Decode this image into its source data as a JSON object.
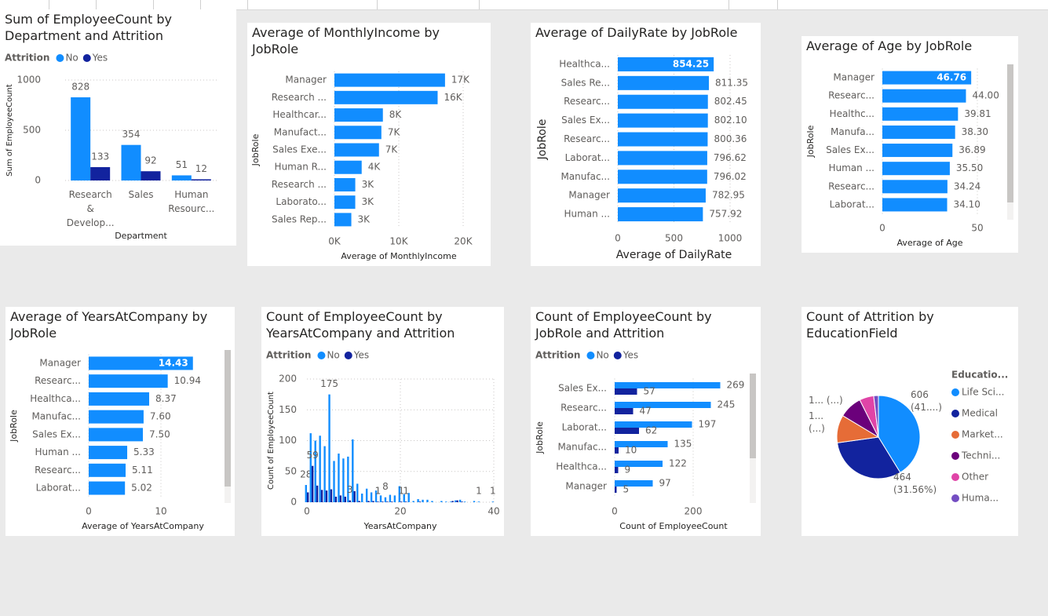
{
  "chart_data": [
    {
      "type": "bar",
      "title": "Sum of EmployeeCount by Department and Attrition",
      "legend_title": "Attrition",
      "x_label": "Department",
      "y_label": "Sum of EmployeeCount",
      "categories": [
        "Research & Develop...",
        "Sales",
        "Human Resourc..."
      ],
      "series": [
        {
          "name": "No",
          "color": "#118dff",
          "values": [
            828,
            354,
            51
          ]
        },
        {
          "name": "Yes",
          "color": "#12239e",
          "values": [
            133,
            92,
            12
          ]
        }
      ],
      "ylim": [
        0,
        1000
      ],
      "yticks": [
        0,
        500,
        1000
      ],
      "grid": true,
      "data_labels": true
    },
    {
      "type": "bar",
      "orientation": "horizontal",
      "title": "Average of MonthlyIncome by JobRole",
      "x_label": "Average of MonthlyIncome",
      "y_label": "JobRole",
      "categories": [
        "Manager",
        "Research ...",
        "Healthcar...",
        "Manufact...",
        "Sales Exe...",
        "Human R...",
        "Research ...",
        "Laborato...",
        "Sales Rep..."
      ],
      "values": [
        17182,
        16034,
        7529,
        7295,
        6924,
        4236,
        3240,
        3237,
        2626
      ],
      "value_labels": [
        "17K",
        "16K",
        "8K",
        "7K",
        "7K",
        "4K",
        "3K",
        "3K",
        "3K"
      ],
      "color": "#118dff",
      "xlim": [
        0,
        20000
      ],
      "xticks": [
        {
          "value": 0,
          "label": "0K"
        },
        {
          "value": 10000,
          "label": "10K"
        },
        {
          "value": 20000,
          "label": "20K"
        }
      ],
      "grid": true
    },
    {
      "type": "bar",
      "orientation": "horizontal",
      "title": "Average of DailyRate by JobRole",
      "x_label": "Average of DailyRate",
      "y_label": "JobRole",
      "categories": [
        "Healthca...",
        "Sales Re...",
        "Researc...",
        "Sales Ex...",
        "Researc...",
        "Laborat...",
        "Manufac...",
        "Manager",
        "Human ..."
      ],
      "values": [
        854.25,
        811.35,
        802.45,
        802.1,
        800.36,
        796.62,
        796.02,
        782.95,
        757.92
      ],
      "value_labels": [
        "854.25",
        "811.35",
        "802.45",
        "802.10",
        "800.36",
        "796.62",
        "796.02",
        "782.95",
        "757.92"
      ],
      "color": "#118dff",
      "xlim": [
        0,
        1000
      ],
      "xticks": [
        0,
        500,
        1000
      ],
      "grid": true
    },
    {
      "type": "bar",
      "orientation": "horizontal",
      "title": "Average of Age by JobRole",
      "x_label": "Average of Age",
      "y_label": "JobRole",
      "categories": [
        "Manager",
        "Researc...",
        "Healthc...",
        "Manufa...",
        "Sales Ex...",
        "Human ...",
        "Researc...",
        "Laborat..."
      ],
      "values": [
        46.76,
        44,
        39.81,
        38.3,
        36.89,
        35.5,
        34.24,
        34.1
      ],
      "value_labels": [
        "46.76",
        "44.00",
        "39.81",
        "38.30",
        "36.89",
        "35.50",
        "34.24",
        "34.10"
      ],
      "color": "#118dff",
      "xlim": [
        0,
        50
      ],
      "xticks": [
        0,
        50
      ],
      "grid": true
    },
    {
      "type": "bar",
      "orientation": "horizontal",
      "title": "Average of YearsAtCompany by JobRole",
      "x_label": "Average of YearsAtCompany",
      "y_label": "JobRole",
      "categories": [
        "Manager",
        "Researc...",
        "Healthca...",
        "Manufac...",
        "Sales Ex...",
        "Human ...",
        "Researc...",
        "Laborat..."
      ],
      "values": [
        14.43,
        10.94,
        8.37,
        7.6,
        7.5,
        5.33,
        5.11,
        5.02
      ],
      "value_labels": [
        "14.43",
        "10.94",
        "8.37",
        "7.60",
        "7.50",
        "5.33",
        "5.11",
        "5.02"
      ],
      "color": "#118dff",
      "xlim": [
        0,
        15
      ],
      "xticks": [
        0,
        10
      ],
      "grid": true
    },
    {
      "type": "bar",
      "title": "Count of EmployeeCount by YearsAtCompany and Attrition",
      "legend_title": "Attrition",
      "x_label": "YearsAtCompany",
      "y_label": "Count of EmployeeCount",
      "x": [
        0,
        1,
        2,
        3,
        4,
        5,
        6,
        7,
        8,
        9,
        10,
        11,
        12,
        13,
        14,
        15,
        16,
        17,
        18,
        19,
        20,
        21,
        22,
        23,
        24,
        25,
        26,
        27,
        28,
        29,
        30,
        31,
        32,
        33,
        34,
        35,
        36,
        37,
        38,
        39,
        40
      ],
      "series": [
        {
          "name": "No",
          "color": "#118dff",
          "values": [
            28,
            112,
            100,
            108,
            91,
            175,
            67,
            79,
            71,
            74,
            102,
            30,
            14,
            22,
            16,
            19,
            11,
            8,
            12,
            11,
            26,
            13,
            15,
            2,
            5,
            4,
            4,
            2,
            null,
            2,
            1,
            1,
            3,
            4,
            1,
            null,
            2,
            1,
            null,
            null,
            1
          ],
          "value_labels": [
            "28",
            null,
            null,
            null,
            null,
            "175",
            null,
            null,
            null,
            null,
            null,
            null,
            null,
            null,
            null,
            null,
            null,
            "8",
            null,
            null,
            null,
            null,
            null,
            null,
            null,
            null,
            null,
            null,
            null,
            null,
            null,
            null,
            null,
            null,
            null,
            null,
            null,
            "1",
            null,
            null,
            "1"
          ]
        },
        {
          "name": "Yes",
          "color": "#12239e",
          "values": [
            16,
            59,
            27,
            20,
            19,
            21,
            9,
            11,
            9,
            3,
            18,
            2,
            null,
            2,
            2,
            1,
            1,
            1,
            1,
            null,
            1,
            1,
            null,
            null,
            1,
            null,
            null,
            null,
            null,
            null,
            null,
            2,
            3,
            1,
            null,
            null,
            null,
            null,
            null,
            null,
            null
          ],
          "value_labels": [
            null,
            "59",
            null,
            null,
            null,
            null,
            null,
            null,
            null,
            "3",
            null,
            null,
            null,
            null,
            null,
            "1",
            null,
            null,
            null,
            null,
            "1",
            "1",
            null,
            null,
            null,
            null,
            null,
            null,
            null,
            null,
            null,
            null,
            null,
            null,
            null,
            null,
            null,
            null,
            null,
            null,
            null
          ]
        }
      ],
      "xlim": [
        0,
        40
      ],
      "xticks": [
        0,
        20,
        40
      ],
      "ylim": [
        0,
        200
      ],
      "yticks": [
        0,
        50,
        100,
        150,
        200
      ],
      "grid": true
    },
    {
      "type": "bar",
      "orientation": "horizontal",
      "title": "Count of EmployeeCount by JobRole and Attrition",
      "legend_title": "Attrition",
      "x_label": "Count of EmployeeCount",
      "y_label": "JobRole",
      "categories": [
        "Sales Ex...",
        "Researc...",
        "Laborat...",
        "Manufac...",
        "Healthca...",
        "Manager"
      ],
      "series": [
        {
          "name": "No",
          "color": "#118dff",
          "values": [
            269,
            245,
            197,
            135,
            122,
            97
          ]
        },
        {
          "name": "Yes",
          "color": "#12239e",
          "values": [
            57,
            47,
            62,
            10,
            9,
            5
          ]
        }
      ],
      "xlim": [
        0,
        300
      ],
      "xticks": [
        0,
        200
      ],
      "grid": true,
      "data_labels": true
    },
    {
      "type": "pie",
      "title": "Count of Attrition by EducationField",
      "legend_title": "Educatio...",
      "categories": [
        "Life Sci...",
        "Medical",
        "Market...",
        "Techni...",
        "Other",
        "Huma..."
      ],
      "values": [
        606,
        464,
        159,
        132,
        82,
        27
      ],
      "value_labels": [
        "606 (41....)",
        "464 (31.56%)",
        "1... (...)",
        "1... (...)",
        null,
        null
      ],
      "colors": [
        "#118dff",
        "#12239e",
        "#e66c37",
        "#6b007b",
        "#e044a7",
        "#744ec2"
      ]
    }
  ]
}
